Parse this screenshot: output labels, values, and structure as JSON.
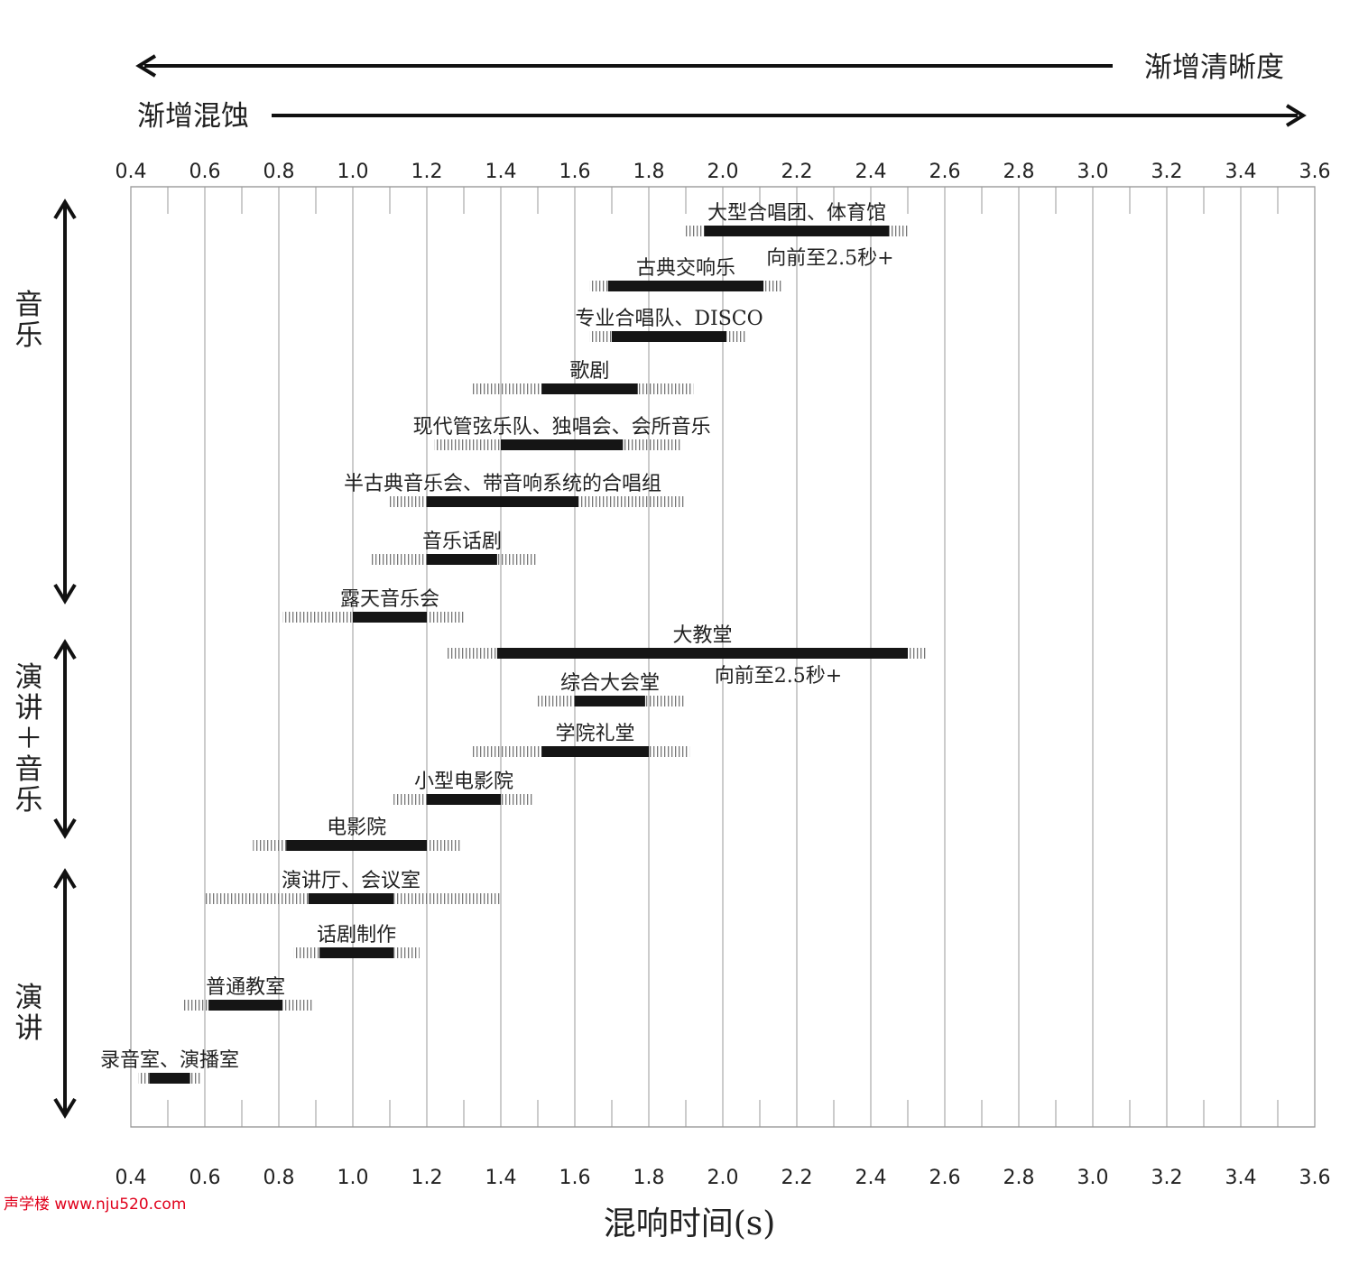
{
  "chart_data": {
    "type": "range-bar",
    "xlabel": "混响时间(s)",
    "xlim": [
      0.4,
      3.6
    ],
    "xticks": [
      "0.4",
      "0.6",
      "0.8",
      "1.0",
      "1.2",
      "1.4",
      "1.6",
      "1.8",
      "2.0",
      "2.2",
      "2.4",
      "2.6",
      "2.8",
      "3.0",
      "3.2",
      "3.4",
      "3.6"
    ],
    "grid": true,
    "top_arrows": {
      "left_label": "渐增清晰度",
      "right_label": "渐增混蚀"
    },
    "groups": [
      {
        "label": "音乐",
        "rows": [
          0,
          7
        ]
      },
      {
        "label": "演讲+音乐",
        "rows": [
          8,
          12
        ]
      },
      {
        "label": "演讲",
        "rows": [
          13,
          16
        ]
      }
    ],
    "items": [
      {
        "label": "大型合唱团、体育馆",
        "range": [
          1.95,
          2.45
        ],
        "tolerance": [
          1.9,
          2.5
        ],
        "note": "向前至2.5秒+"
      },
      {
        "label": "古典交响乐",
        "range": [
          1.69,
          2.11
        ],
        "tolerance": [
          1.64,
          2.16
        ],
        "note": ""
      },
      {
        "label": "专业合唱队、DISCO",
        "range": [
          1.7,
          2.01
        ],
        "tolerance": [
          1.64,
          2.06
        ],
        "note": ""
      },
      {
        "label": "歌剧",
        "range": [
          1.51,
          1.77
        ],
        "tolerance": [
          1.32,
          1.92
        ],
        "note": ""
      },
      {
        "label": "现代管弦乐队、独唱会、会所音乐",
        "range": [
          1.4,
          1.73
        ],
        "tolerance": [
          1.22,
          1.89
        ],
        "note": ""
      },
      {
        "label": "半古典音乐会、带音响系统的合唱组",
        "range": [
          1.2,
          1.61
        ],
        "tolerance": [
          1.1,
          1.9
        ],
        "note": ""
      },
      {
        "label": "音乐话剧",
        "range": [
          1.2,
          1.39
        ],
        "tolerance": [
          1.05,
          1.5
        ],
        "note": ""
      },
      {
        "label": "露天音乐会",
        "range": [
          1.0,
          1.2
        ],
        "tolerance": [
          0.81,
          1.3
        ],
        "note": ""
      },
      {
        "label": "大教堂",
        "range": [
          1.39,
          2.5
        ],
        "tolerance": [
          1.25,
          2.55
        ],
        "note": "向前至2.5秒+"
      },
      {
        "label": "综合大会堂",
        "range": [
          1.6,
          1.79
        ],
        "tolerance": [
          1.5,
          1.9
        ],
        "note": ""
      },
      {
        "label": "学院礼堂",
        "range": [
          1.51,
          1.8
        ],
        "tolerance": [
          1.32,
          1.91
        ],
        "note": ""
      },
      {
        "label": "小型电影院",
        "range": [
          1.2,
          1.4
        ],
        "tolerance": [
          1.11,
          1.49
        ],
        "note": ""
      },
      {
        "label": "电影院",
        "range": [
          0.82,
          1.2
        ],
        "tolerance": [
          0.73,
          1.29
        ],
        "note": ""
      },
      {
        "label": "演讲厅、会议室",
        "range": [
          0.88,
          1.11
        ],
        "tolerance": [
          0.6,
          1.4
        ],
        "note": ""
      },
      {
        "label": "话剧制作",
        "range": [
          0.91,
          1.11
        ],
        "tolerance": [
          0.84,
          1.18
        ],
        "note": ""
      },
      {
        "label": "普通教室",
        "range": [
          0.61,
          0.81
        ],
        "tolerance": [
          0.54,
          0.89
        ],
        "note": ""
      },
      {
        "label": "录音室、演播室",
        "range": [
          0.45,
          0.56
        ],
        "tolerance": [
          0.42,
          0.59
        ],
        "note": ""
      }
    ]
  },
  "watermark": "声学楼 www.nju520.com"
}
